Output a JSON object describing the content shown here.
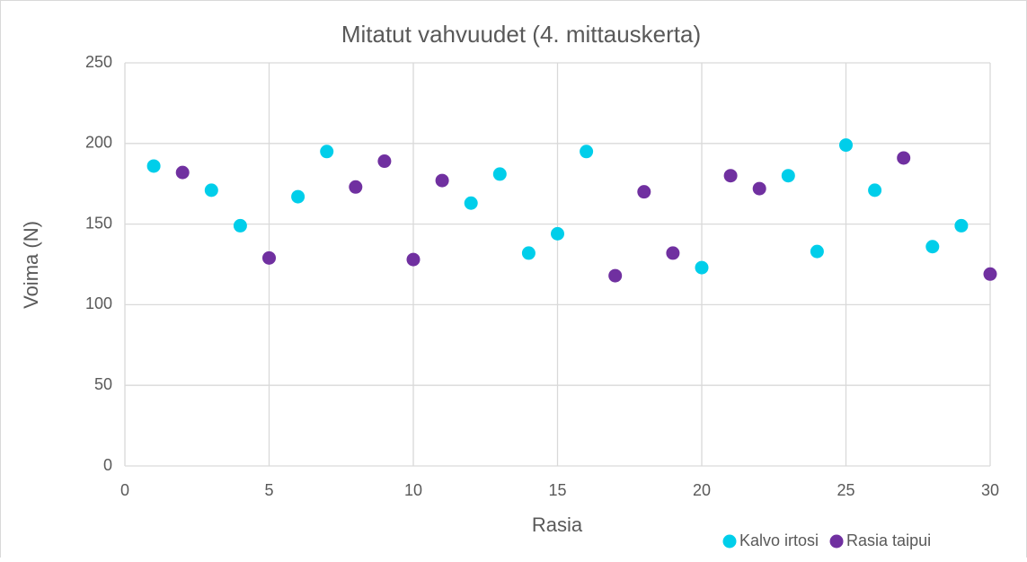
{
  "chart_data": {
    "type": "scatter",
    "title": "Mitatut vahvuudet (4. mittauskerta)",
    "x_label": "Rasia",
    "y_label": "Voima (N)",
    "xlim": [
      0,
      30
    ],
    "xticks": [
      0,
      5,
      10,
      15,
      20,
      25,
      30
    ],
    "ylim": [
      0,
      250
    ],
    "yticks": [
      0,
      50,
      100,
      150,
      200,
      250
    ],
    "grid": true,
    "legend": "bottom-right",
    "series": [
      {
        "name": "Kalvo irtosi",
        "color": "#00ceea",
        "x": [
          1,
          3,
          4,
          6,
          7,
          12,
          13,
          14,
          15,
          16,
          20,
          23,
          24,
          25,
          26,
          28,
          29
        ],
        "values": [
          186,
          171,
          149,
          167,
          195,
          163,
          181,
          132,
          144,
          195,
          123,
          180,
          133,
          199,
          171,
          136,
          149
        ]
      },
      {
        "name": "Rasia taipui",
        "color": "#7030a0",
        "x": [
          2,
          5,
          8,
          9,
          10,
          11,
          17,
          18,
          19,
          21,
          22,
          27,
          30
        ],
        "values": [
          182,
          129,
          173,
          189,
          128,
          177,
          118,
          170,
          132,
          180,
          172,
          191,
          119
        ]
      }
    ]
  }
}
